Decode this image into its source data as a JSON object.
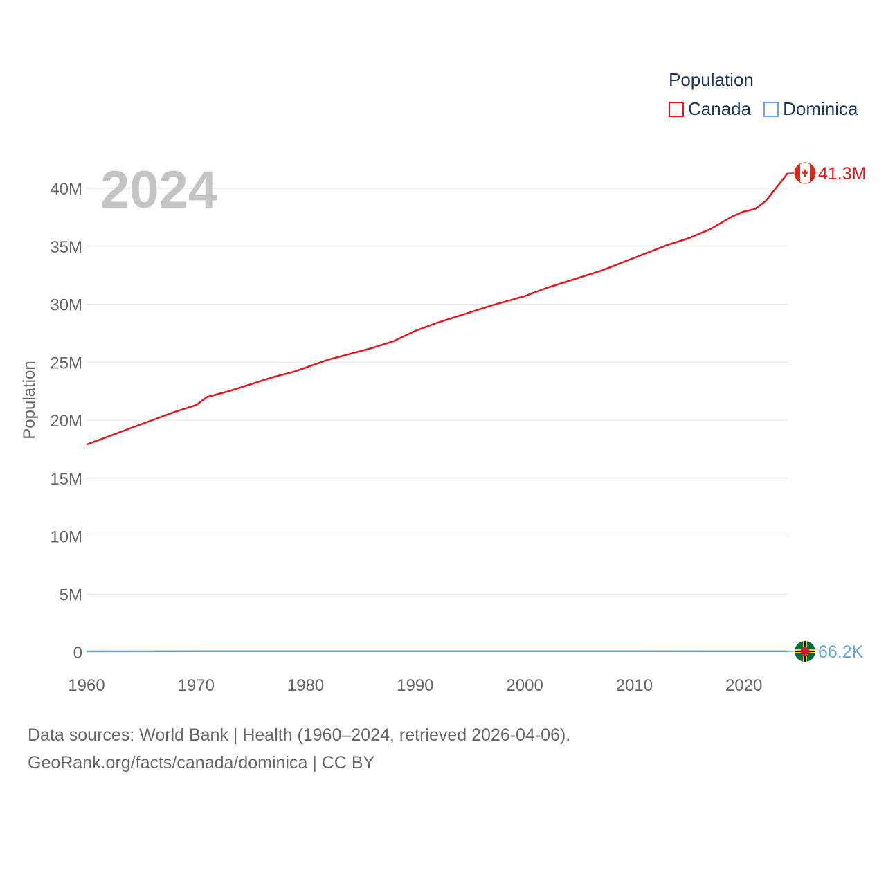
{
  "legend": {
    "title": "Population",
    "items": [
      {
        "name": "Canada",
        "color": "#e8131b"
      },
      {
        "name": "Dominica",
        "color": "#64a6e0"
      }
    ]
  },
  "year_label": "2024",
  "footer": {
    "line1": "Data sources: World Bank | Health (1960–2024, retrieved 2026-04-06).",
    "line2": "GeoRank.org/facts/canada/dominica | CC BY"
  },
  "chart_data": {
    "type": "line",
    "title": "",
    "xlabel": "",
    "ylabel": "Population",
    "xlim": [
      1960,
      2024
    ],
    "ylim": [
      0,
      42000000
    ],
    "x_ticks": [
      1960,
      1970,
      1980,
      1990,
      2000,
      2010,
      2020
    ],
    "x_tick_labels": [
      "1960",
      "1970",
      "1980",
      "1990",
      "2000",
      "2010",
      "2020"
    ],
    "y_ticks": [
      0,
      5000000,
      10000000,
      15000000,
      20000000,
      25000000,
      30000000,
      35000000,
      40000000
    ],
    "y_tick_labels": [
      "0",
      "5M",
      "10M",
      "15M",
      "20M",
      "25M",
      "30M",
      "35M",
      "40M"
    ],
    "grid": true,
    "series": [
      {
        "name": "Canada",
        "color": "#e8131b",
        "end_label": "41.3M",
        "flag": "canada-flag",
        "x": [
          1960,
          1962,
          1964,
          1966,
          1968,
          1970,
          1971,
          1973,
          1975,
          1977,
          1979,
          1982,
          1986,
          1988,
          1990,
          1992,
          1994,
          1997,
          2000,
          2002,
          2004,
          2007,
          2010,
          2013,
          2015,
          2017,
          2019,
          2020,
          2021,
          2022,
          2023,
          2024
        ],
        "values": [
          17900000,
          18600000,
          19300000,
          20000000,
          20700000,
          21300000,
          22000000,
          22500000,
          23100000,
          23700000,
          24200000,
          25200000,
          26200000,
          26800000,
          27700000,
          28400000,
          29000000,
          29900000,
          30700000,
          31400000,
          32000000,
          32900000,
          34000000,
          35100000,
          35700000,
          36500000,
          37600000,
          38000000,
          38200000,
          38900000,
          40100000,
          41300000
        ]
      },
      {
        "name": "Dominica",
        "color": "#64a6e0",
        "end_label": "66.2K",
        "flag": "dominica-flag",
        "x": [
          1960,
          1970,
          1980,
          1990,
          2000,
          2010,
          2020,
          2024
        ],
        "values": [
          59000,
          70000,
          73000,
          69000,
          69000,
          69000,
          68000,
          66200
        ]
      }
    ]
  }
}
